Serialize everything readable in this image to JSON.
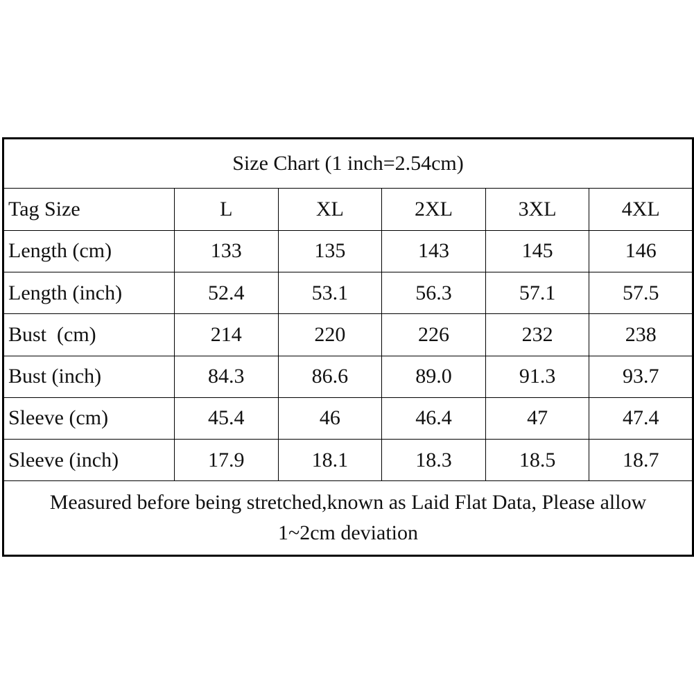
{
  "title": "Size Chart (1 inch=2.54cm)",
  "header": {
    "label": "Tag Size",
    "sizes": [
      "L",
      "XL",
      "2XL",
      "3XL",
      "4XL"
    ]
  },
  "rows": [
    {
      "label": "Length (cm)",
      "values": [
        "133",
        "135",
        "143",
        "145",
        "146"
      ]
    },
    {
      "label": "Length (inch)",
      "values": [
        "52.4",
        "53.1",
        "56.3",
        "57.1",
        "57.5"
      ]
    },
    {
      "label": "Bust  (cm)",
      "values": [
        "214",
        "220",
        "226",
        "232",
        "238"
      ]
    },
    {
      "label": "Bust (inch)",
      "values": [
        "84.3",
        "86.6",
        "89.0",
        "91.3",
        "93.7"
      ]
    },
    {
      "label": "Sleeve (cm)",
      "values": [
        "45.4",
        "46",
        "46.4",
        "47",
        "47.4"
      ]
    },
    {
      "label": "Sleeve (inch)",
      "values": [
        "17.9",
        "18.1",
        "18.3",
        "18.5",
        "18.7"
      ]
    }
  ],
  "note": {
    "line1": "Measured before being stretched,known as Laid Flat Data, Please allow",
    "line2": "1~2cm deviation"
  }
}
